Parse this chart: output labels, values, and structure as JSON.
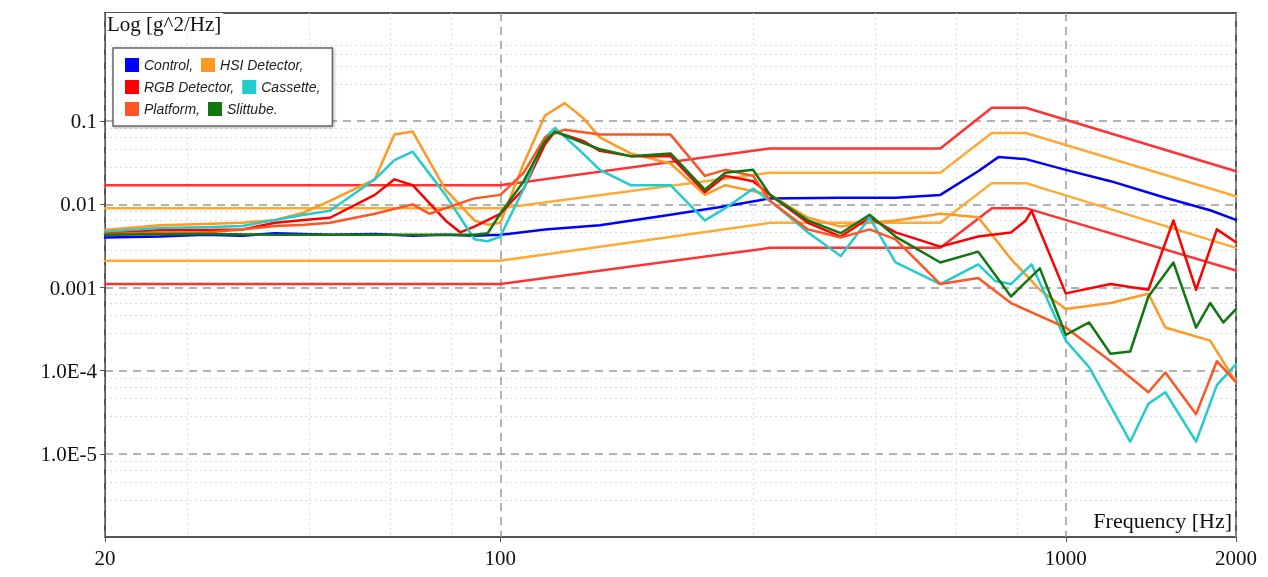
{
  "chart_data": {
    "type": "line",
    "ylabel": "Log [g^2/Hz]",
    "xlabel": "Frequency [Hz]",
    "log": "xy",
    "grid": true,
    "legend": "top left",
    "marker": "none",
    "line_style": "solid",
    "xlim": [
      20,
      2000
    ],
    "xticks": [
      20,
      100,
      1000,
      2000
    ],
    "ylim": [
      1e-06,
      2
    ],
    "yticks": [
      {
        "value": 1e-05,
        "label": "1.0E-5"
      },
      {
        "value": 0.0001,
        "label": "1.0E-4"
      },
      0.001,
      0.01,
      0.1
    ],
    "series": [
      {
        "name": "Control,",
        "color": "#0000ff",
        "x": [
          20,
          25,
          30,
          35,
          40,
          50,
          60,
          70,
          80,
          90,
          100,
          120,
          150,
          200,
          250,
          300,
          400,
          500,
          600,
          700,
          760,
          850,
          1000,
          1200,
          1500,
          1800,
          2000
        ],
        "values": [
          0.004,
          0.0041,
          0.0043,
          0.0042,
          0.0045,
          0.0043,
          0.0044,
          0.0042,
          0.0043,
          0.0042,
          0.0043,
          0.005,
          0.0056,
          0.0075,
          0.0095,
          0.0118,
          0.012,
          0.012,
          0.013,
          0.025,
          0.037,
          0.035,
          0.026,
          0.019,
          0.012,
          0.0085,
          0.0065
        ]
      },
      {
        "name": "HSI Detector,",
        "color": "#ff9922",
        "x": [
          20,
          25,
          30,
          35,
          40,
          45,
          50,
          60,
          65,
          70,
          80,
          90,
          95,
          100,
          110,
          120,
          130,
          140,
          150,
          170,
          200,
          230,
          250,
          300,
          350,
          400,
          450,
          500,
          600,
          700,
          800,
          900,
          1000,
          1200,
          1400,
          1500,
          1800,
          2000
        ],
        "values": [
          0.0049,
          0.0056,
          0.0058,
          0.006,
          0.0065,
          0.008,
          0.011,
          0.02,
          0.069,
          0.075,
          0.015,
          0.0064,
          0.0057,
          0.006,
          0.031,
          0.117,
          0.165,
          0.11,
          0.064,
          0.041,
          0.031,
          0.013,
          0.017,
          0.013,
          0.0069,
          0.0054,
          0.006,
          0.0064,
          0.0077,
          0.007,
          0.0022,
          0.00094,
          0.00055,
          0.00065,
          0.00084,
          0.00033,
          0.00023,
          7.3e-05
        ]
      },
      {
        "name": "RGB Detector,",
        "color": "#ff0000",
        "x": [
          20,
          25,
          30,
          35,
          40,
          45,
          50,
          60,
          65,
          70,
          80,
          85,
          90,
          100,
          110,
          120,
          125,
          140,
          150,
          170,
          200,
          230,
          250,
          280,
          300,
          350,
          400,
          450,
          500,
          600,
          700,
          800,
          850,
          870,
          1000,
          1200,
          1400,
          1550,
          1700,
          1850,
          2000
        ],
        "values": [
          0.0045,
          0.0049,
          0.0049,
          0.005,
          0.006,
          0.0065,
          0.0069,
          0.013,
          0.02,
          0.017,
          0.0064,
          0.0046,
          0.0054,
          0.0077,
          0.0154,
          0.053,
          0.075,
          0.058,
          0.044,
          0.038,
          0.038,
          0.014,
          0.022,
          0.019,
          0.013,
          0.006,
          0.0041,
          0.0069,
          0.0046,
          0.0031,
          0.0041,
          0.0046,
          0.0064,
          0.0084,
          0.00085,
          0.0011,
          0.00094,
          0.0064,
          0.00094,
          0.005,
          0.0035
        ]
      },
      {
        "name": "Cassette,",
        "color": "#22cccc",
        "x": [
          20,
          25,
          30,
          35,
          40,
          45,
          50,
          60,
          65,
          70,
          80,
          90,
          95,
          100,
          110,
          120,
          125,
          140,
          150,
          170,
          200,
          230,
          250,
          280,
          300,
          350,
          400,
          450,
          500,
          600,
          700,
          750,
          800,
          870,
          1000,
          1100,
          1300,
          1400,
          1500,
          1700,
          1850,
          2000
        ],
        "values": [
          0.0047,
          0.0052,
          0.0053,
          0.0055,
          0.0065,
          0.0075,
          0.0084,
          0.02,
          0.034,
          0.043,
          0.013,
          0.0038,
          0.0036,
          0.0041,
          0.0154,
          0.064,
          0.083,
          0.041,
          0.026,
          0.017,
          0.017,
          0.0064,
          0.009,
          0.0154,
          0.011,
          0.0046,
          0.0024,
          0.0069,
          0.002,
          0.0011,
          0.0019,
          0.0012,
          0.0011,
          0.0019,
          0.00023,
          0.00011,
          1.4e-05,
          4e-05,
          5.5e-05,
          1.4e-05,
          6.7e-05,
          0.00012
        ]
      },
      {
        "name": "Platform,",
        "color": "#ff5522",
        "x": [
          20,
          25,
          30,
          35,
          40,
          45,
          50,
          60,
          70,
          75,
          80,
          90,
          100,
          110,
          120,
          130,
          150,
          170,
          200,
          230,
          250,
          280,
          300,
          350,
          400,
          450,
          500,
          600,
          700,
          800,
          1000,
          1200,
          1400,
          1500,
          1700,
          1850,
          2000
        ],
        "values": [
          0.0044,
          0.0046,
          0.0046,
          0.005,
          0.0055,
          0.0057,
          0.006,
          0.0077,
          0.01,
          0.0077,
          0.009,
          0.0118,
          0.013,
          0.024,
          0.064,
          0.079,
          0.069,
          0.069,
          0.069,
          0.022,
          0.026,
          0.022,
          0.011,
          0.005,
          0.004,
          0.005,
          0.0038,
          0.0011,
          0.0013,
          0.00065,
          0.00033,
          0.00013,
          5.5e-05,
          9.5e-05,
          3e-05,
          0.00013,
          7.3e-05
        ]
      },
      {
        "name": "Slittube.",
        "color": "#117711",
        "x": [
          20,
          30,
          40,
          50,
          60,
          70,
          80,
          90,
          95,
          100,
          110,
          120,
          125,
          140,
          150,
          170,
          200,
          230,
          250,
          280,
          300,
          350,
          400,
          450,
          500,
          600,
          700,
          800,
          900,
          1000,
          1100,
          1200,
          1300,
          1400,
          1550,
          1700,
          1800,
          1900,
          2000
        ],
        "values": [
          0.0043,
          0.0044,
          0.0043,
          0.0043,
          0.0043,
          0.0043,
          0.0043,
          0.0043,
          0.0045,
          0.0077,
          0.019,
          0.058,
          0.075,
          0.055,
          0.046,
          0.038,
          0.041,
          0.015,
          0.024,
          0.026,
          0.013,
          0.0064,
          0.0045,
          0.0075,
          0.0041,
          0.002,
          0.0027,
          0.00078,
          0.0017,
          0.00027,
          0.00038,
          0.00016,
          0.00017,
          0.00078,
          0.002,
          0.00033,
          0.00065,
          0.00038,
          0.00055
        ]
      },
      {
        "color": "#ff3333",
        "x": [
          20,
          100,
          300,
          600,
          740,
          850,
          2000
        ],
        "values": [
          0.017,
          0.017,
          0.047,
          0.047,
          0.145,
          0.145,
          0.025
        ]
      },
      {
        "color": "#ffaa33",
        "x": [
          20,
          100,
          300,
          600,
          740,
          850,
          2000
        ],
        "values": [
          0.009,
          0.009,
          0.024,
          0.024,
          0.072,
          0.072,
          0.0125
        ]
      },
      {
        "color": "#ffaa33",
        "x": [
          20,
          100,
          300,
          600,
          740,
          850,
          2000
        ],
        "values": [
          0.0021,
          0.0021,
          0.006,
          0.006,
          0.018,
          0.018,
          0.003
        ]
      },
      {
        "color": "#ff3333",
        "x": [
          20,
          100,
          300,
          600,
          740,
          850,
          2000
        ],
        "values": [
          0.0011,
          0.0011,
          0.003,
          0.003,
          0.009,
          0.009,
          0.0016
        ]
      }
    ]
  }
}
